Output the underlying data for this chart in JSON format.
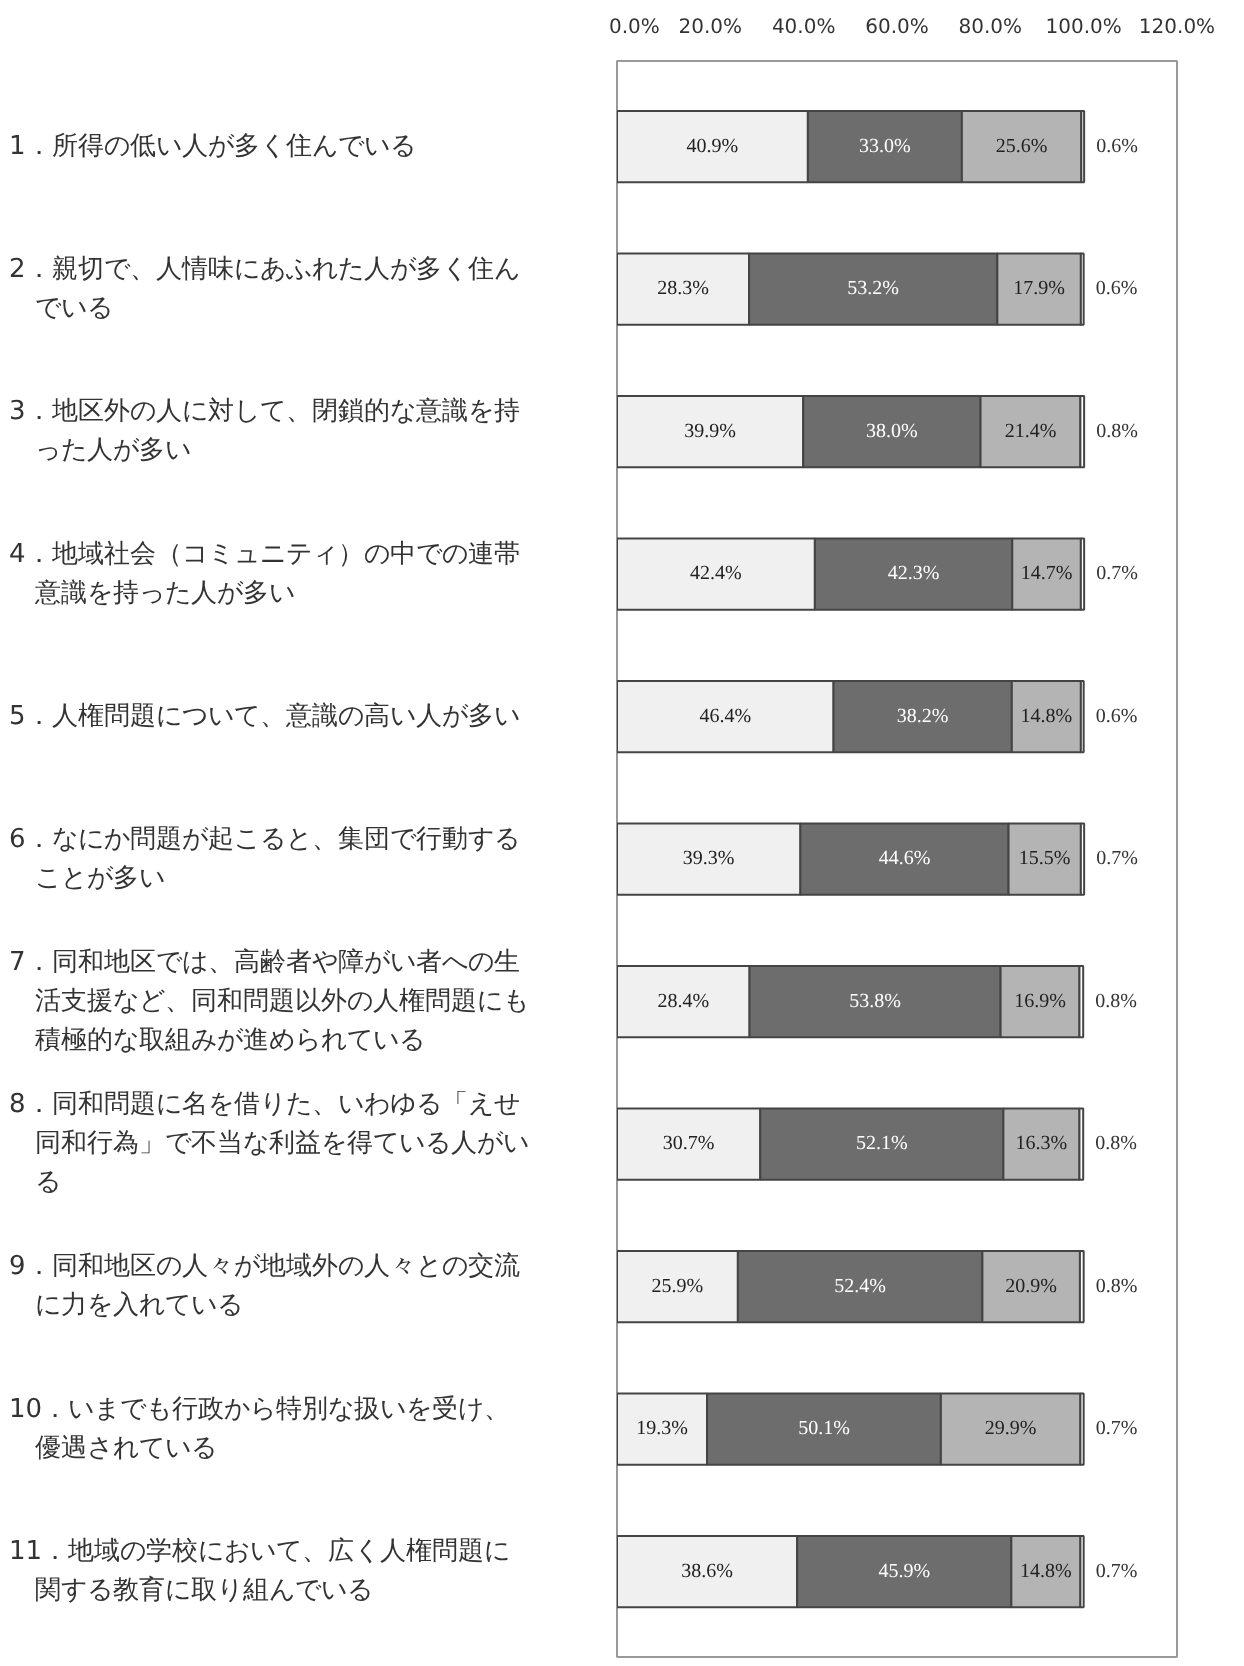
{
  "chart_data": {
    "type": "bar",
    "orientation": "horizontal",
    "stacked": true,
    "categories": [
      "1．所得の低い人が多く住んでいる",
      "2．親切で、人情味にあふれた人が多く住んでいる",
      "3．地区外の人に対して、閉鎖的な意識を持った人が多い",
      "4．地域社会（コミュニティ）の中での連帯意識を持った人が多い",
      "5．人権問題について、意識の高い人が多い",
      "6．なにか問題が起こると、集団で行動することが多い",
      "7．同和地区では、高齢者や障がい者への生活支援など、同和問題以外の人権問題にも積極的な取組みが進められている",
      "8．同和問題に名を借りた、いわゆる「えせ同和行為」で不当な利益を得ている人がいる",
      "9．同和地区の人々が地域外の人々との交流に力を入れている",
      "10．いまでも行政から特別な扱いを受け、優遇されている",
      "11．地域の学校において、広く人権問題に関する教育に取り組んでいる"
    ],
    "series": [
      {
        "color": "#f0f0f0",
        "values": [
          40.9,
          28.3,
          39.9,
          42.4,
          46.4,
          39.3,
          28.4,
          30.7,
          25.9,
          19.3,
          38.6
        ],
        "value_labels": [
          "40.9%",
          "28.3%",
          "39.9%",
          "42.4%",
          "46.4%",
          "39.3%",
          "28.4%",
          "30.7%",
          "25.9%",
          "19.3%",
          "38.6%"
        ]
      },
      {
        "color": "#6d6d6d",
        "values": [
          33.0,
          53.2,
          38.0,
          42.3,
          38.2,
          44.6,
          53.8,
          52.1,
          52.4,
          50.1,
          45.9
        ],
        "value_labels": [
          "33.0%",
          "53.2%",
          "38.0%",
          "42.3%",
          "38.2%",
          "44.6%",
          "53.8%",
          "52.1%",
          "52.4%",
          "50.1%",
          "45.9%"
        ]
      },
      {
        "color": "#b4b4b4",
        "values": [
          25.6,
          17.9,
          21.4,
          14.7,
          14.8,
          15.5,
          16.9,
          16.3,
          20.9,
          29.9,
          14.8
        ],
        "value_labels": [
          "25.6%",
          "17.9%",
          "21.4%",
          "14.7%",
          "14.8%",
          "15.5%",
          "16.9%",
          "16.3%",
          "20.9%",
          "29.9%",
          "14.8%"
        ]
      },
      {
        "color": "#ffffff",
        "values": [
          0.6,
          0.6,
          0.8,
          0.7,
          0.6,
          0.7,
          0.8,
          0.8,
          0.8,
          0.7,
          0.7
        ],
        "value_labels": [
          "0.6%",
          "0.6%",
          "0.8%",
          "0.7%",
          "0.6%",
          "0.7%",
          "0.8%",
          "0.8%",
          "0.8%",
          "0.7%",
          "0.7%"
        ]
      }
    ],
    "xlim": [
      0,
      120
    ],
    "xticks": [
      {
        "value": 0,
        "label": "0.0%"
      },
      {
        "value": 20,
        "label": "20.0%"
      },
      {
        "value": 40,
        "label": "40.0%"
      },
      {
        "value": 60,
        "label": "60.0%"
      },
      {
        "value": 80,
        "label": "80.0%"
      },
      {
        "value": 100,
        "label": "100.0%"
      },
      {
        "value": 120,
        "label": "120.0%"
      }
    ],
    "tick_labels": "x",
    "grid": false
  }
}
